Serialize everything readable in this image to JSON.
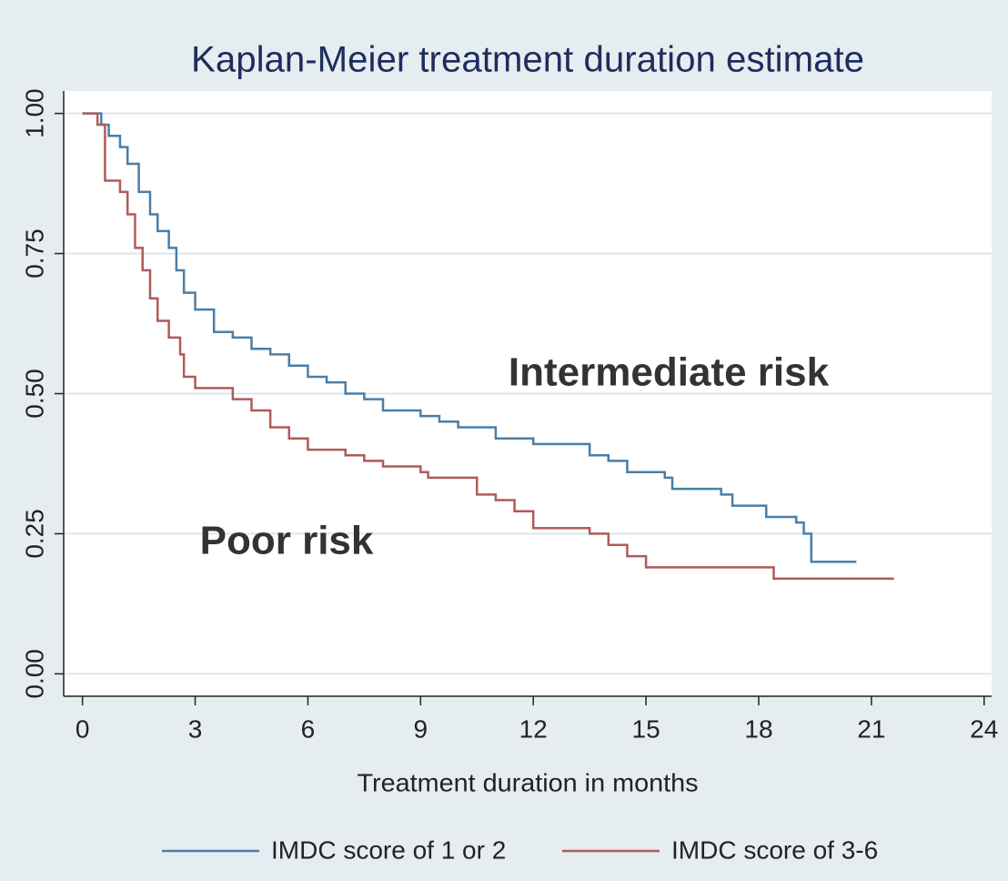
{
  "chart_data": {
    "type": "line",
    "step": true,
    "title": "Kaplan-Meier treatment duration estimate",
    "x_label": "Treatment duration in months",
    "xlim": [
      -0.5,
      24.2
    ],
    "ylim": [
      -0.04,
      1.04
    ],
    "xticks": [
      0,
      3,
      6,
      9,
      12,
      15,
      18,
      21,
      24
    ],
    "yticks": [
      {
        "value": 0,
        "label": "0.00"
      },
      {
        "value": 0.25,
        "label": "0.25"
      },
      {
        "value": 0.5,
        "label": "0.50"
      },
      {
        "value": 0.75,
        "label": "0.75"
      },
      {
        "value": 1,
        "label": "1.00"
      }
    ],
    "grid": true,
    "legend": "bottom",
    "series": [
      {
        "name": "IMDC score of 1 or 2",
        "color": "#4a7ea8",
        "x": [
          0,
          0.4,
          0.5,
          0.7,
          1.0,
          1.2,
          1.5,
          1.8,
          2.0,
          2.3,
          2.5,
          2.7,
          3.0,
          3.5,
          4.0,
          4.5,
          5.0,
          5.5,
          6.0,
          6.5,
          7.0,
          7.5,
          8.0,
          9.0,
          9.5,
          10.0,
          11.0,
          12.0,
          13.0,
          13.5,
          14.0,
          14.5,
          15.0,
          15.5,
          15.7,
          17.0,
          17.3,
          18.0,
          18.2,
          19.0,
          19.2,
          19.4,
          20.6
        ],
        "values": [
          1.0,
          1.0,
          0.98,
          0.96,
          0.94,
          0.91,
          0.86,
          0.82,
          0.79,
          0.76,
          0.72,
          0.68,
          0.65,
          0.61,
          0.6,
          0.58,
          0.57,
          0.55,
          0.53,
          0.52,
          0.5,
          0.49,
          0.47,
          0.46,
          0.45,
          0.44,
          0.42,
          0.41,
          0.41,
          0.39,
          0.38,
          0.36,
          0.36,
          0.35,
          0.33,
          0.32,
          0.3,
          0.3,
          0.28,
          0.27,
          0.25,
          0.2,
          0.2
        ]
      },
      {
        "name": "IMDC score of 3-6",
        "color": "#b05a5a",
        "x": [
          0,
          0.4,
          0.6,
          1.0,
          1.2,
          1.4,
          1.6,
          1.8,
          2.0,
          2.3,
          2.6,
          2.7,
          3.0,
          4.0,
          4.5,
          5.0,
          5.5,
          6.0,
          7.0,
          7.5,
          8.0,
          9.0,
          9.2,
          10.0,
          10.5,
          11.0,
          11.5,
          12.0,
          13.0,
          13.5,
          14.0,
          14.5,
          15.0,
          17.0,
          18.4,
          21.6
        ],
        "values": [
          1.0,
          0.98,
          0.88,
          0.86,
          0.82,
          0.76,
          0.72,
          0.67,
          0.63,
          0.6,
          0.57,
          0.53,
          0.51,
          0.49,
          0.47,
          0.44,
          0.42,
          0.4,
          0.39,
          0.38,
          0.37,
          0.36,
          0.35,
          0.35,
          0.32,
          0.31,
          0.29,
          0.26,
          0.26,
          0.25,
          0.23,
          0.21,
          0.19,
          0.19,
          0.17,
          0.17
        ]
      }
    ],
    "annotations": [
      "Intermediate risk",
      "Poor risk"
    ]
  }
}
